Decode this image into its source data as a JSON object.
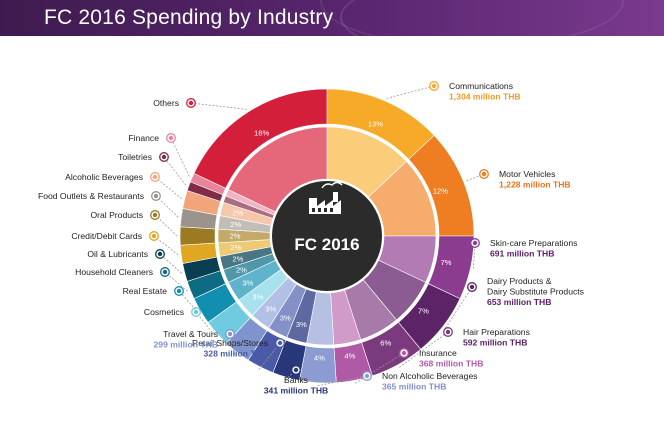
{
  "title": "FC 2016 Spending by Industry",
  "center_label": "FC 2016",
  "icon": "factory-icon",
  "chart_data": {
    "type": "pie",
    "title": "FC 2016 Spending by Industry",
    "unit": "million THB",
    "segments": [
      {
        "name": "Communications",
        "percent": 13,
        "value": "1,304",
        "color": "#f7a928",
        "light": "#fbcd7a",
        "value_color": "#f29a1e"
      },
      {
        "name": "Motor Vehicles",
        "percent": 12,
        "value": "1,228",
        "color": "#ef7d22",
        "light": "#f6ac6d",
        "value_color": "#e8731b"
      },
      {
        "name": "Skin-care Preparations",
        "percent": 7,
        "value": "691",
        "color": "#8b3c8f",
        "light": "#b27bb4",
        "value_color": "#5a2166"
      },
      {
        "name": "Dairy Products & Dairy Substitute Products",
        "percent": 7,
        "value": "653",
        "color": "#5c2467",
        "light": "#8a5c92",
        "value_color": "#5a2166"
      },
      {
        "name": "Hair Preparations",
        "percent": 6,
        "value": "592",
        "color": "#7b3a7e",
        "light": "#a77aa9",
        "value_color": "#5a2166"
      },
      {
        "name": "Insurance",
        "percent": 4,
        "value": "368",
        "color": "#b05aa6",
        "light": "#d09ac9",
        "value_color": "#b05aa6"
      },
      {
        "name": "Non Alcoholic Beverages",
        "percent": 4,
        "value": "365",
        "color": "#8c9bd1",
        "light": "#b6c0e3",
        "value_color": "#7f90cc"
      },
      {
        "name": "Banks",
        "percent": 3,
        "value": "341",
        "color": "#283779",
        "light": "#5d69a0",
        "value_color": "#283779"
      },
      {
        "name": "Retail Shops/Stores",
        "percent": 3,
        "value": "328",
        "color": "#4a5aa8",
        "light": "#8590c6",
        "value_color": "#4a5aa8"
      },
      {
        "name": "Travel & Tours",
        "percent": 3,
        "value": "299",
        "color": "#7f93cf",
        "light": "#b3c0e6",
        "value_color": "#7f93cf"
      },
      {
        "name": "Cosmetics",
        "percent": 3,
        "value": "",
        "color": "#6fcbe0",
        "light": "#a8e1ee",
        "value_color": ""
      },
      {
        "name": "Real Estate",
        "percent": 3,
        "value": "",
        "color": "#128eb0",
        "light": "#5fb4cc",
        "value_color": ""
      },
      {
        "name": "Household Cleaners",
        "percent": 2,
        "value": "",
        "color": "#0d6c84",
        "light": "#4e98aa",
        "value_color": ""
      },
      {
        "name": "Oil & Lubricants",
        "percent": 2,
        "value": "",
        "color": "#0a3e52",
        "light": "#4a7585",
        "value_color": ""
      },
      {
        "name": "Credit/Debit Cards",
        "percent": 2,
        "value": "",
        "color": "#e0a723",
        "light": "#efca74",
        "value_color": ""
      },
      {
        "name": "Oral Products",
        "percent": 2,
        "value": "",
        "color": "#9c7a23",
        "light": "#c4aa69",
        "value_color": ""
      },
      {
        "name": "Food Outlets & Restaurants",
        "percent": 2,
        "value": "",
        "color": "#9b938c",
        "light": "#c3bdb7",
        "value_color": ""
      },
      {
        "name": "Alcoholic Beverages",
        "percent": 2,
        "value": "",
        "color": "#f2a57a",
        "light": "#f7c7ab",
        "value_color": ""
      },
      {
        "name": "Toiletries",
        "percent": 1,
        "value": "",
        "color": "#7f2d46",
        "light": "#ab6d80",
        "value_color": ""
      },
      {
        "name": "Finance",
        "percent": 1,
        "value": "",
        "color": "#e8859d",
        "light": "#f2b4c3",
        "value_color": ""
      },
      {
        "name": "Others",
        "percent": 18,
        "value": "",
        "color": "#d41f3a",
        "light": "#e5677a",
        "value_color": ""
      }
    ]
  }
}
